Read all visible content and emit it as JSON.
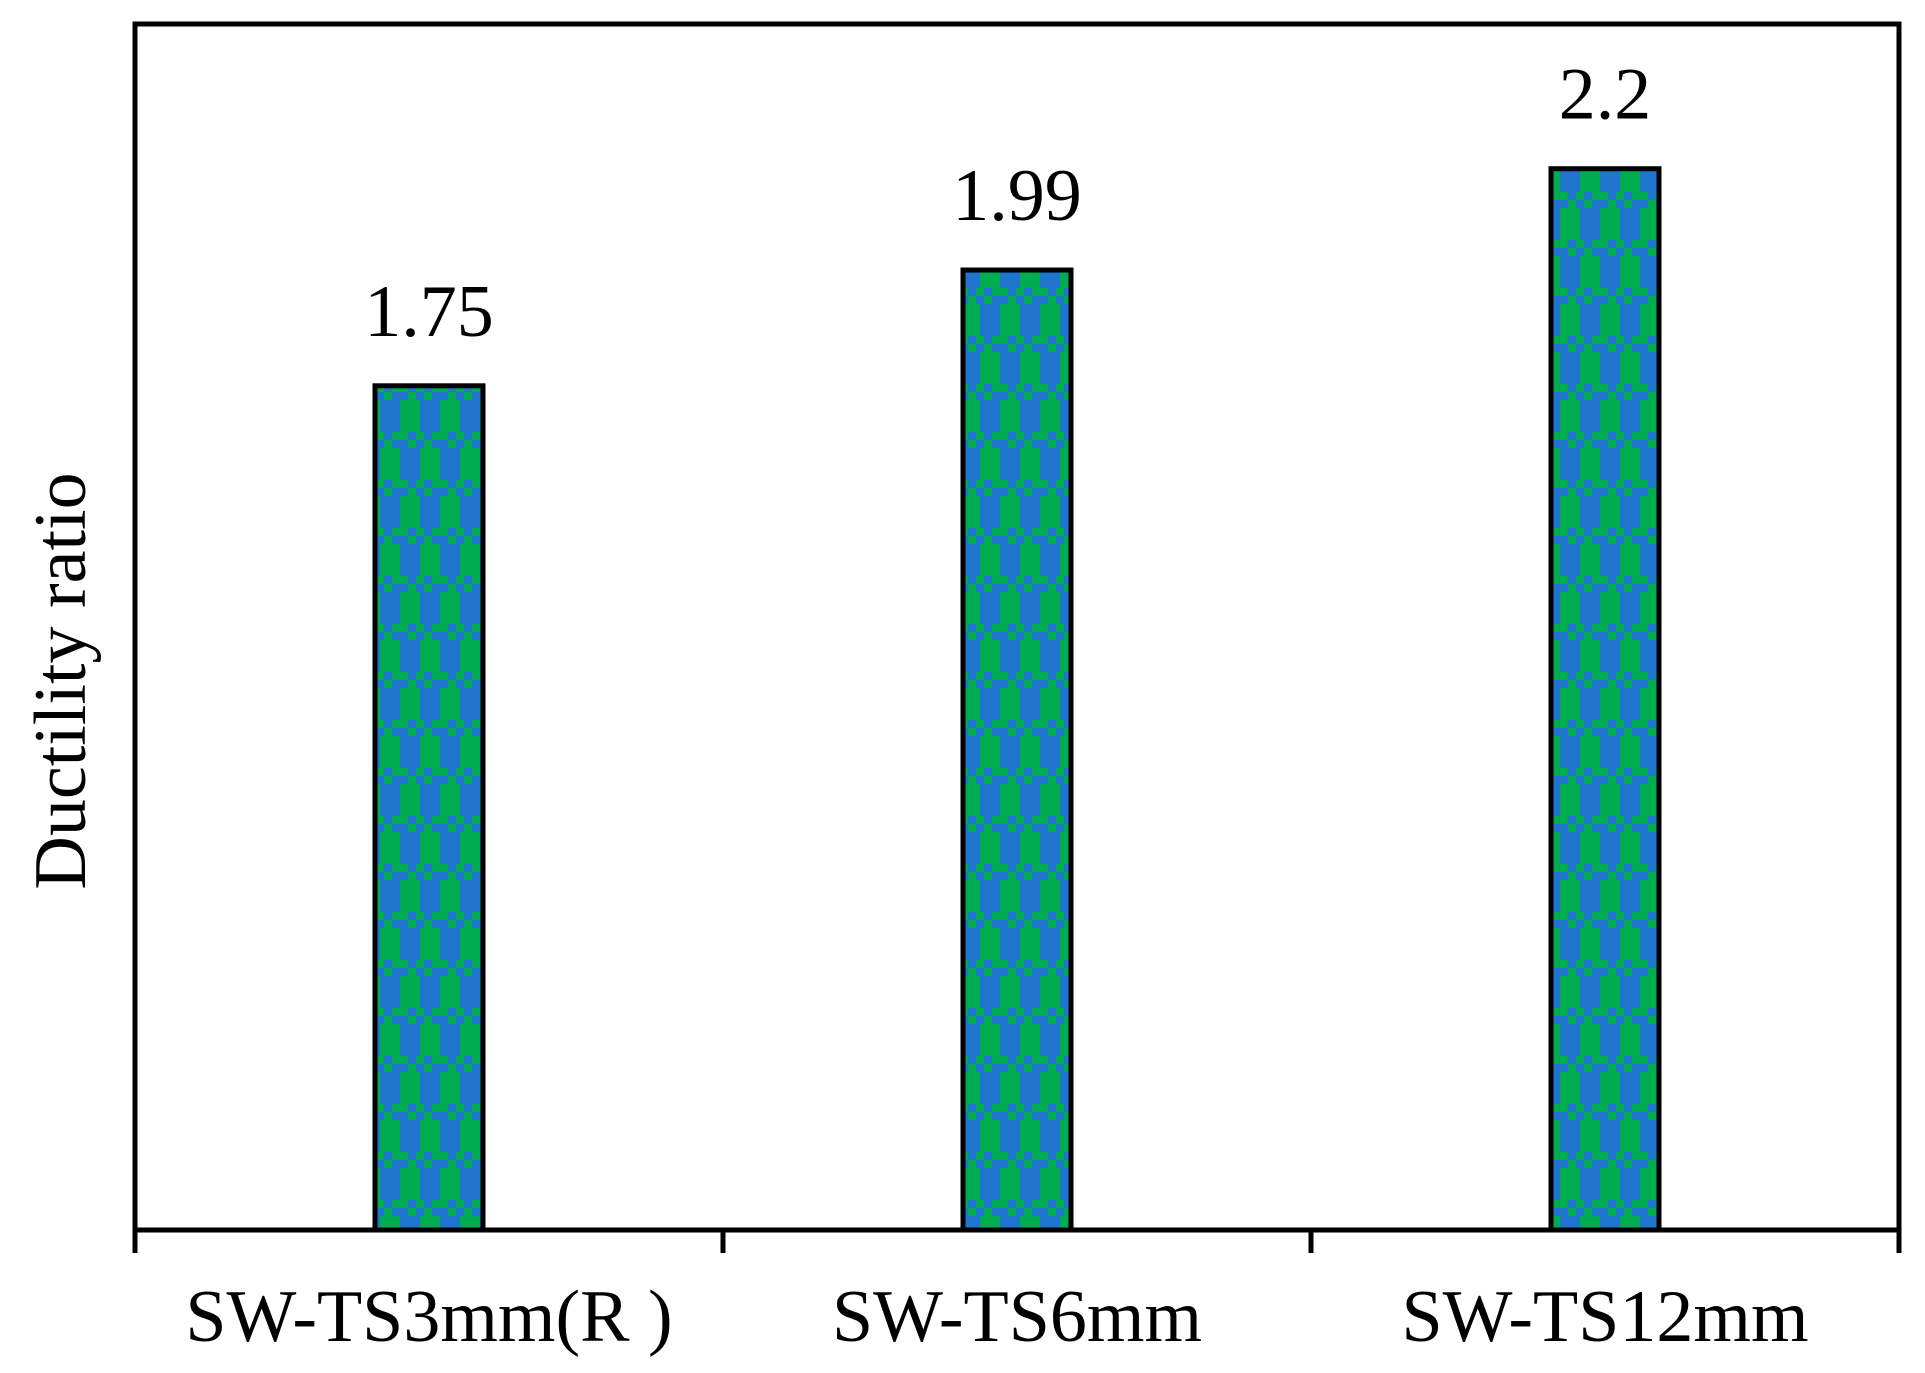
{
  "chart_data": {
    "type": "bar",
    "categories": [
      "SW-TS3mm(R )",
      "SW-TS6mm",
      "SW-TS12mm"
    ],
    "values": [
      1.75,
      1.99,
      2.2
    ],
    "value_labels": [
      "1.75",
      "1.99",
      "2.2"
    ],
    "title": "",
    "xlabel": "",
    "ylabel": "Ductility ratio",
    "ylim": [
      0,
      2.5
    ],
    "grid": false,
    "legend": false,
    "colors": {
      "pattern_green": "#00AC50",
      "pattern_blue": "#1F74CE",
      "bar_outline": "#000000",
      "axis": "#000000",
      "text": "#000000",
      "background": "#FFFFFF"
    },
    "bar_pattern": "green-blue plaid/checker fill"
  }
}
